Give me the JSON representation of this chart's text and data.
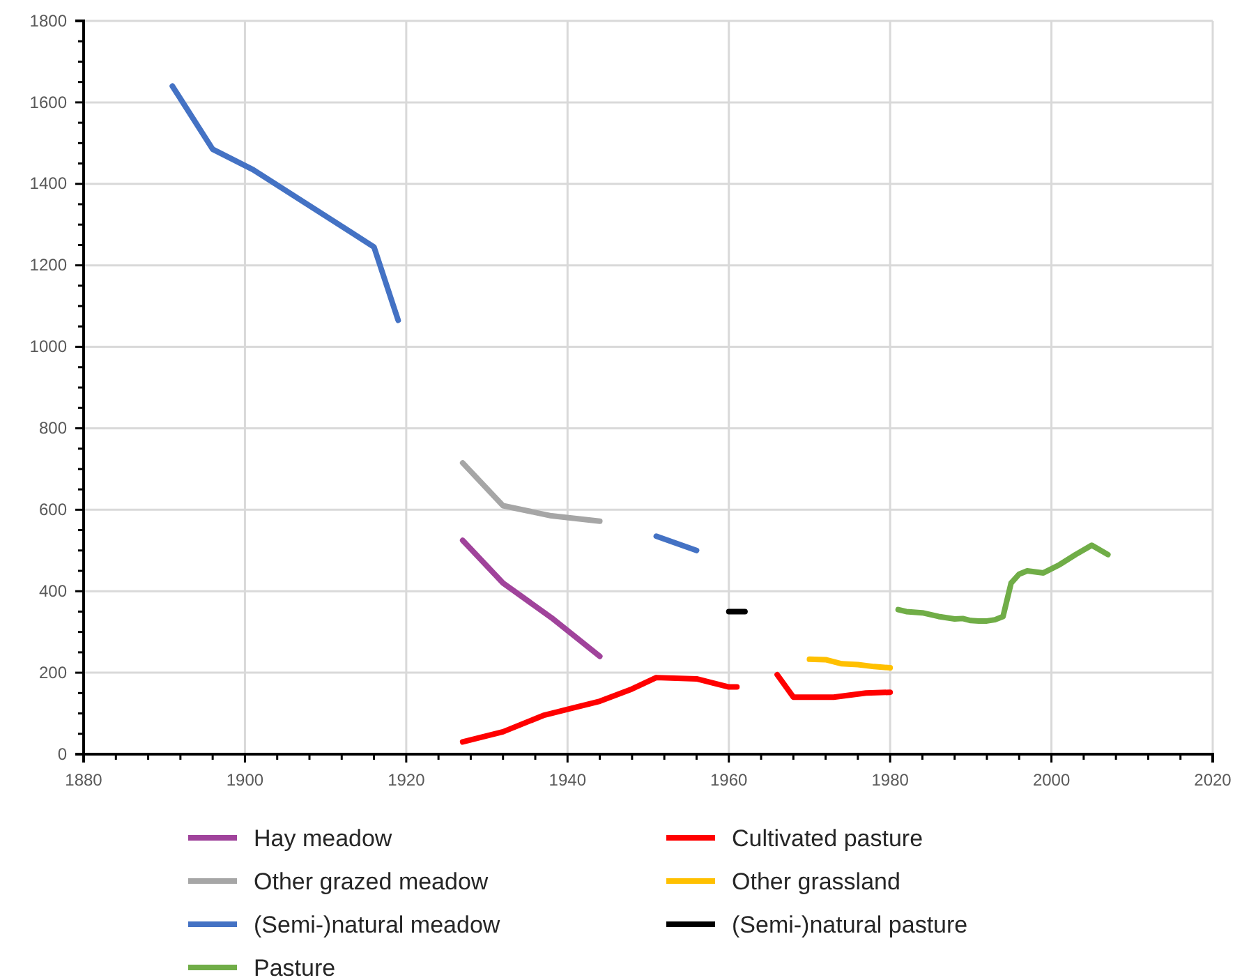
{
  "chart_data": {
    "type": "line",
    "xlim": [
      1880,
      2020
    ],
    "xticks": [
      1880,
      {
        "value": 1884,
        "label": null
      },
      {
        "value": 1888,
        "label": null
      },
      {
        "value": 1892,
        "label": null
      },
      {
        "value": 1896,
        "label": null
      },
      1900,
      {
        "value": 1904,
        "label": null
      },
      {
        "value": 1908,
        "label": null
      },
      {
        "value": 1912,
        "label": null
      },
      {
        "value": 1916,
        "label": null
      },
      1920,
      {
        "value": 1924,
        "label": null
      },
      {
        "value": 1928,
        "label": null
      },
      {
        "value": 1932,
        "label": null
      },
      {
        "value": 1936,
        "label": null
      },
      1940,
      {
        "value": 1944,
        "label": null
      },
      {
        "value": 1948,
        "label": null
      },
      {
        "value": 1952,
        "label": null
      },
      {
        "value": 1956,
        "label": null
      },
      1960,
      {
        "value": 1964,
        "label": null
      },
      {
        "value": 1968,
        "label": null
      },
      {
        "value": 1972,
        "label": null
      },
      {
        "value": 1976,
        "label": null
      },
      1980,
      {
        "value": 1984,
        "label": null
      },
      {
        "value": 1988,
        "label": null
      },
      {
        "value": 1992,
        "label": null
      },
      {
        "value": 1996,
        "label": null
      },
      2000,
      {
        "value": 2004,
        "label": null
      },
      {
        "value": 2008,
        "label": null
      },
      {
        "value": 2012,
        "label": null
      },
      {
        "value": 2016,
        "label": null
      },
      2020
    ],
    "ylim": [
      0,
      1800
    ],
    "yticks": [
      0,
      {
        "value": 50,
        "label": null
      },
      {
        "value": 100,
        "label": null
      },
      {
        "value": 150,
        "label": null
      },
      200,
      {
        "value": 250,
        "label": null
      },
      {
        "value": 300,
        "label": null
      },
      {
        "value": 350,
        "label": null
      },
      400,
      {
        "value": 450,
        "label": null
      },
      {
        "value": 500,
        "label": null
      },
      {
        "value": 550,
        "label": null
      },
      600,
      {
        "value": 650,
        "label": null
      },
      {
        "value": 700,
        "label": null
      },
      {
        "value": 750,
        "label": null
      },
      800,
      {
        "value": 850,
        "label": null
      },
      {
        "value": 900,
        "label": null
      },
      {
        "value": 950,
        "label": null
      },
      1000,
      {
        "value": 1050,
        "label": null
      },
      {
        "value": 1100,
        "label": null
      },
      {
        "value": 1150,
        "label": null
      },
      1200,
      {
        "value": 1250,
        "label": null
      },
      {
        "value": 1300,
        "label": null
      },
      {
        "value": 1350,
        "label": null
      },
      1400,
      {
        "value": 1450,
        "label": null
      },
      {
        "value": 1500,
        "label": null
      },
      {
        "value": 1550,
        "label": null
      },
      1600,
      {
        "value": 1650,
        "label": null
      },
      {
        "value": 1700,
        "label": null
      },
      {
        "value": 1750,
        "label": null
      },
      1800
    ],
    "grid": true,
    "legend": "bottom",
    "marker": "none",
    "line_style": "solid",
    "series": [
      {
        "name": "Hay meadow",
        "color": "#a0439b",
        "x": [
          1927,
          1932,
          1938,
          1944
        ],
        "values": [
          525,
          420,
          335,
          240
        ]
      },
      {
        "name": "Other grazed meadow",
        "color": "#a6a6a6",
        "x": [
          1927,
          1932,
          1938,
          1944
        ],
        "values": [
          715,
          610,
          585,
          572
        ]
      },
      {
        "name": "(Semi-)natural meadow",
        "color": "#4472c4",
        "x": [
          1891,
          1896,
          1901,
          1916,
          1919,
          1935,
          1951,
          1956
        ],
        "values": [
          1640,
          1485,
          1435,
          1245,
          1065,
          null,
          535,
          500
        ]
      },
      {
        "name": "Pasture",
        "color": "#70ad47",
        "x": [
          1981,
          1982,
          1984,
          1986,
          1988,
          1989,
          1990,
          1991,
          1992,
          1993,
          1994,
          1995,
          1996,
          1997,
          1999,
          2001,
          2003,
          2005,
          2007
        ],
        "values": [
          355,
          350,
          347,
          338,
          332,
          333,
          328,
          327,
          327,
          330,
          338,
          420,
          442,
          450,
          445,
          465,
          490,
          513,
          490
        ]
      },
      {
        "name": "Cultivated pasture",
        "color": "#ff0000",
        "x": [
          1927,
          1932,
          1937,
          1940,
          1944,
          1948,
          1951,
          1956,
          1960,
          1961,
          1963,
          1966,
          1968,
          1973,
          1977,
          1980
        ],
        "values": [
          30,
          55,
          95,
          110,
          130,
          160,
          188,
          185,
          165,
          165,
          null,
          195,
          140,
          140,
          150,
          152
        ]
      },
      {
        "name": "Other grassland",
        "color": "#ffc000",
        "x": [
          1970,
          1972,
          1974,
          1976,
          1978,
          1980
        ],
        "values": [
          233,
          232,
          222,
          220,
          215,
          212
        ]
      },
      {
        "name": "(Semi-)natural pasture",
        "color": "#000000",
        "x": [
          1960,
          1962
        ],
        "values": [
          350,
          350
        ]
      }
    ]
  }
}
